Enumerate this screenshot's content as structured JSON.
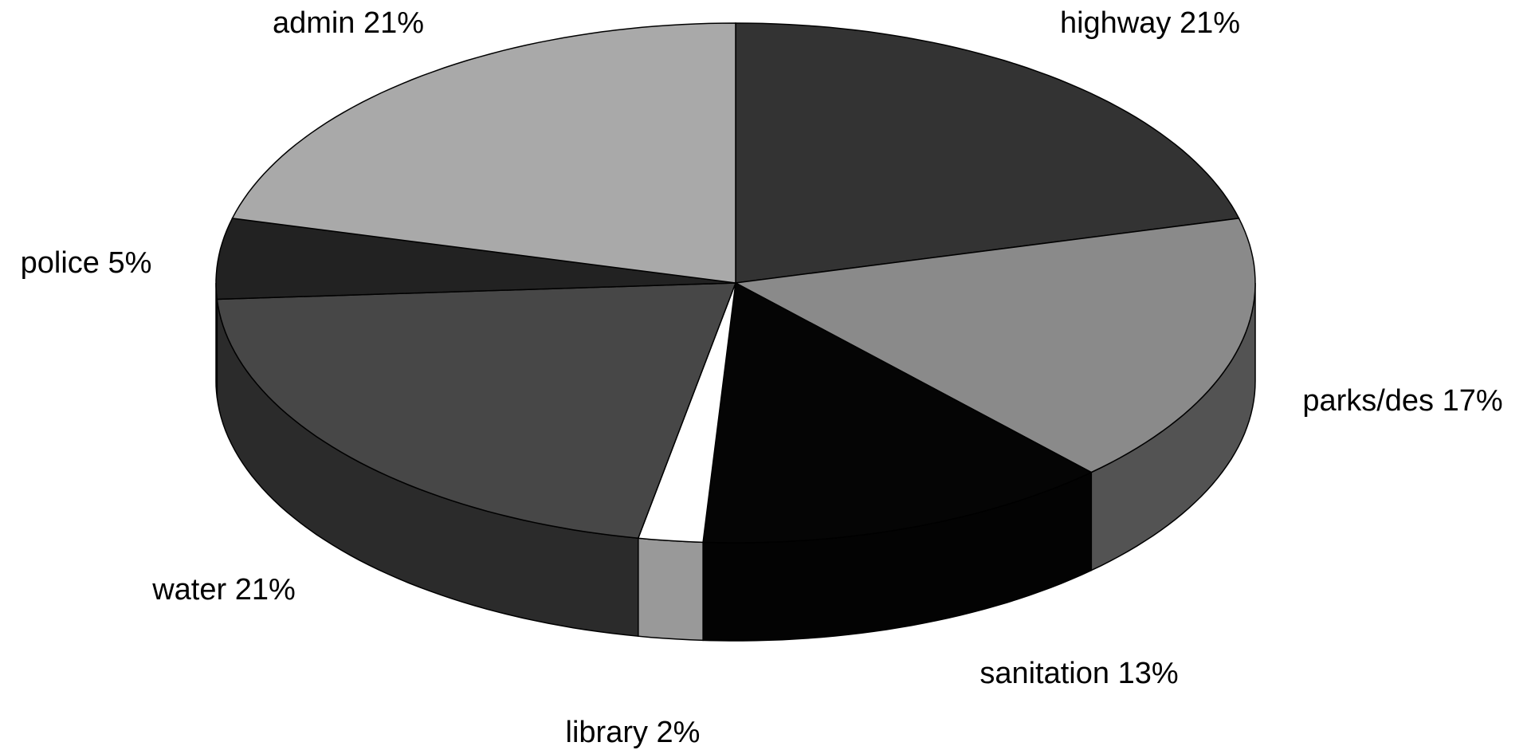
{
  "chart_data": {
    "type": "pie",
    "categories": [
      "highway",
      "parks/des",
      "sanitation",
      "library",
      "water",
      "police",
      "admin"
    ],
    "values": [
      21,
      17,
      13,
      2,
      21,
      5,
      21
    ],
    "value_labels": [
      "21%",
      "17%",
      "13%",
      "2%",
      "21%",
      "5%",
      "21%"
    ],
    "colors": [
      "#333333",
      "#8a8a8a",
      "#050505",
      "#ffffff",
      "#474747",
      "#222222",
      "#a9a9a9"
    ]
  }
}
